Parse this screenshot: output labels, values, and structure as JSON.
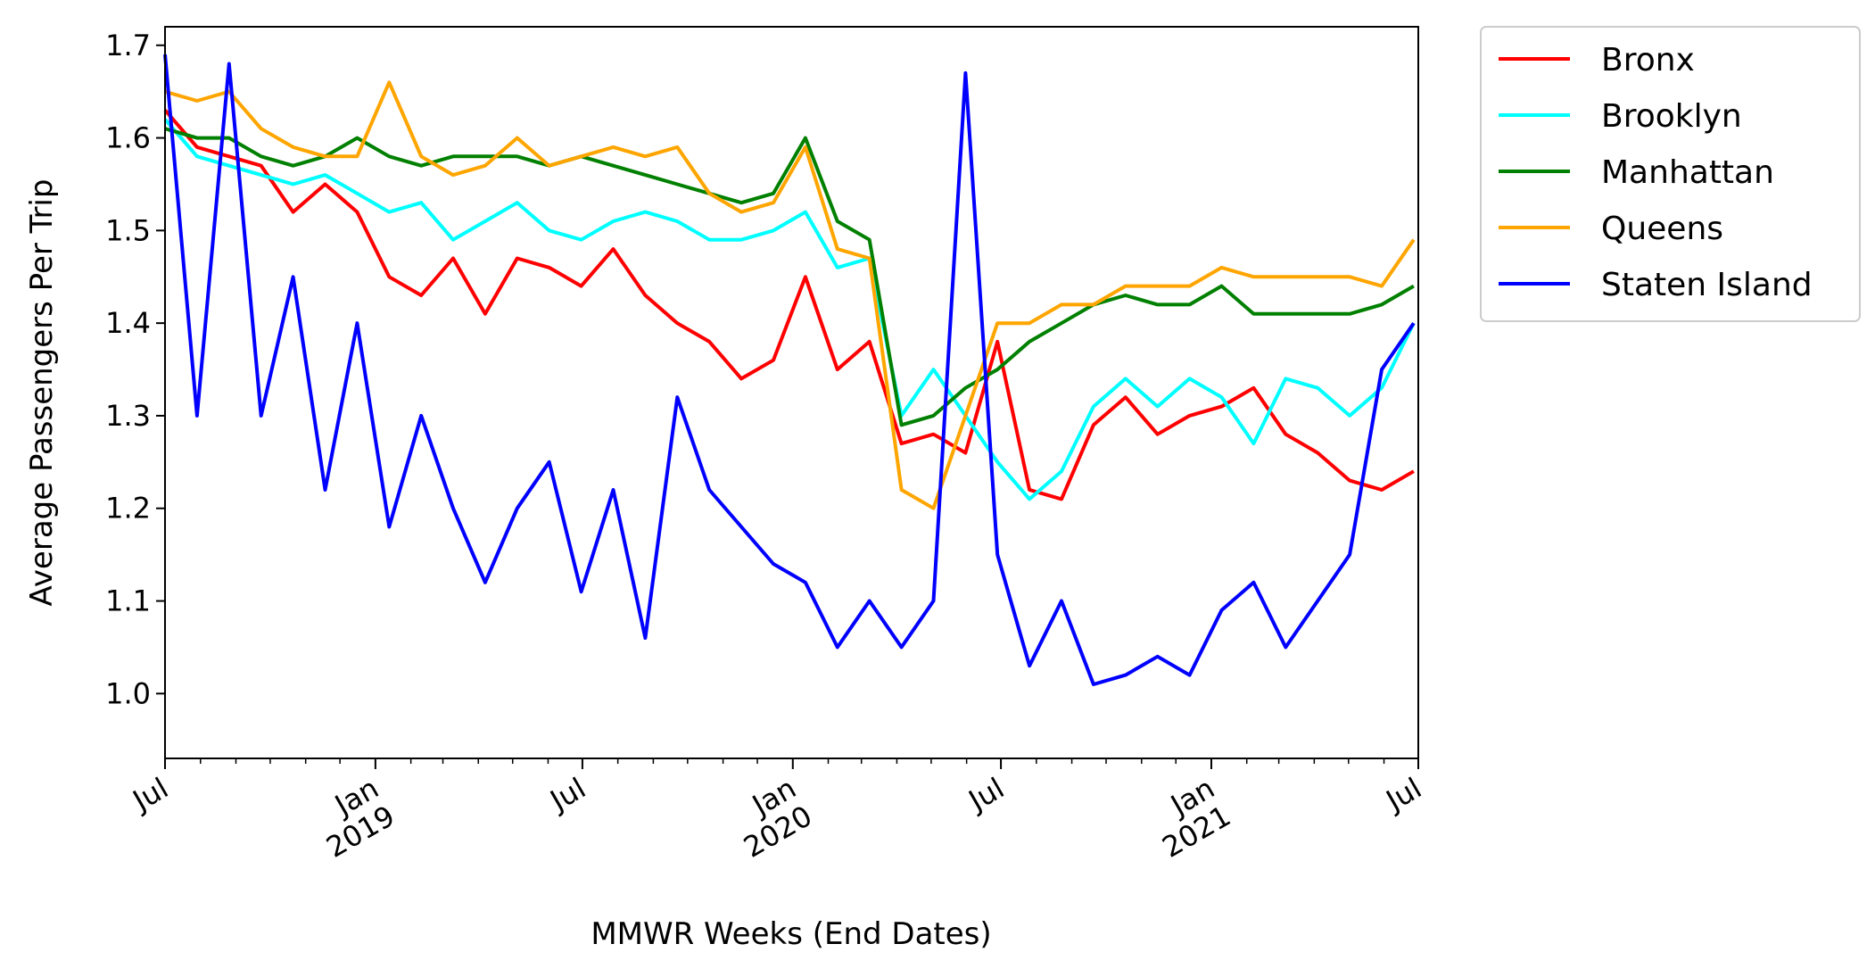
{
  "chart_data": {
    "type": "line",
    "title": "",
    "xlabel": "MMWR Weeks (End Dates)",
    "ylabel": "Average Passengers Per Trip",
    "ylim": [
      0.93,
      1.72
    ],
    "xlim": [
      "2018-07-01",
      "2021-07-01"
    ],
    "yticks": [
      "1.0",
      "1.1",
      "1.2",
      "1.3",
      "1.4",
      "1.5",
      "1.6",
      "1.7"
    ],
    "yticks_values": [
      1.0,
      1.1,
      1.2,
      1.3,
      1.4,
      1.5,
      1.6,
      1.7
    ],
    "xticks": [
      {
        "date": "2018-07-01",
        "line1": "Jul",
        "line2": ""
      },
      {
        "date": "2019-01-01",
        "line1": "Jan",
        "line2": "2019"
      },
      {
        "date": "2019-07-01",
        "line1": "Jul",
        "line2": ""
      },
      {
        "date": "2020-01-01",
        "line1": "Jan",
        "line2": "2020"
      },
      {
        "date": "2020-07-01",
        "line1": "Jul",
        "line2": ""
      },
      {
        "date": "2021-01-01",
        "line1": "Jan",
        "line2": "2021"
      },
      {
        "date": "2021-07-01",
        "line1": "Jul",
        "line2": ""
      }
    ],
    "grid": false,
    "legend_position": "outside-right-top",
    "x": [
      "2018-07-01",
      "2018-07-29",
      "2018-08-26",
      "2018-09-23",
      "2018-10-21",
      "2018-11-18",
      "2018-12-16",
      "2019-01-13",
      "2019-02-10",
      "2019-03-10",
      "2019-04-07",
      "2019-05-05",
      "2019-06-02",
      "2019-06-30",
      "2019-07-28",
      "2019-08-25",
      "2019-09-22",
      "2019-10-20",
      "2019-11-17",
      "2019-12-15",
      "2020-01-12",
      "2020-02-09",
      "2020-03-08",
      "2020-04-05",
      "2020-05-03",
      "2020-05-31",
      "2020-06-28",
      "2020-07-26",
      "2020-08-23",
      "2020-09-20",
      "2020-10-18",
      "2020-11-15",
      "2020-12-13",
      "2021-01-10",
      "2021-02-07",
      "2021-03-07",
      "2021-04-04",
      "2021-05-02",
      "2021-05-30",
      "2021-06-27"
    ],
    "series": [
      {
        "name": "Bronx",
        "color": "#ff0000",
        "values": [
          1.63,
          1.59,
          1.58,
          1.57,
          1.52,
          1.55,
          1.52,
          1.45,
          1.43,
          1.47,
          1.41,
          1.47,
          1.46,
          1.44,
          1.48,
          1.43,
          1.4,
          1.38,
          1.34,
          1.36,
          1.45,
          1.35,
          1.38,
          1.27,
          1.28,
          1.26,
          1.38,
          1.22,
          1.21,
          1.29,
          1.32,
          1.28,
          1.3,
          1.31,
          1.33,
          1.28,
          1.26,
          1.23,
          1.22,
          1.24
        ]
      },
      {
        "name": "Brooklyn",
        "color": "#00ffff",
        "values": [
          1.62,
          1.58,
          1.57,
          1.56,
          1.55,
          1.56,
          1.54,
          1.52,
          1.53,
          1.49,
          1.51,
          1.53,
          1.5,
          1.49,
          1.51,
          1.52,
          1.51,
          1.49,
          1.49,
          1.5,
          1.52,
          1.46,
          1.47,
          1.3,
          1.35,
          1.3,
          1.25,
          1.21,
          1.24,
          1.31,
          1.34,
          1.31,
          1.34,
          1.32,
          1.27,
          1.34,
          1.33,
          1.3,
          1.33,
          1.4
        ]
      },
      {
        "name": "Manhattan",
        "color": "#008000",
        "values": [
          1.61,
          1.6,
          1.6,
          1.58,
          1.57,
          1.58,
          1.6,
          1.58,
          1.57,
          1.58,
          1.58,
          1.58,
          1.57,
          1.58,
          1.57,
          1.56,
          1.55,
          1.54,
          1.53,
          1.54,
          1.6,
          1.51,
          1.49,
          1.29,
          1.3,
          1.33,
          1.35,
          1.38,
          1.4,
          1.42,
          1.43,
          1.42,
          1.42,
          1.44,
          1.41,
          1.41,
          1.41,
          1.41,
          1.42,
          1.44
        ]
      },
      {
        "name": "Queens",
        "color": "#ffa500",
        "values": [
          1.65,
          1.64,
          1.65,
          1.61,
          1.59,
          1.58,
          1.58,
          1.66,
          1.58,
          1.56,
          1.57,
          1.6,
          1.57,
          1.58,
          1.59,
          1.58,
          1.59,
          1.54,
          1.52,
          1.53,
          1.59,
          1.48,
          1.47,
          1.22,
          1.2,
          1.3,
          1.4,
          1.4,
          1.42,
          1.42,
          1.44,
          1.44,
          1.44,
          1.46,
          1.45,
          1.45,
          1.45,
          1.45,
          1.44,
          1.49
        ]
      },
      {
        "name": "Staten Island",
        "color": "#0000ff",
        "values": [
          1.69,
          1.3,
          1.68,
          1.3,
          1.45,
          1.22,
          1.4,
          1.18,
          1.3,
          1.2,
          1.12,
          1.2,
          1.25,
          1.11,
          1.22,
          1.06,
          1.32,
          1.22,
          1.18,
          1.14,
          1.12,
          1.05,
          1.1,
          1.05,
          1.1,
          1.67,
          1.15,
          1.03,
          1.1,
          1.01,
          1.02,
          1.04,
          1.02,
          1.09,
          1.12,
          1.05,
          1.1,
          1.15,
          1.35,
          1.4
        ]
      }
    ]
  }
}
